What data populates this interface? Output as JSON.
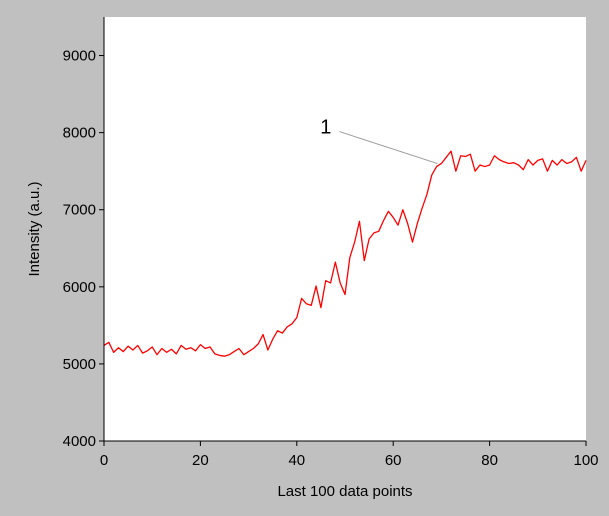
{
  "chart_data": {
    "type": "line",
    "title": "",
    "xlabel": "Last 100 data points",
    "ylabel": "Intensity (a.u.)",
    "xlim": [
      0,
      100
    ],
    "ylim": [
      4000,
      9500
    ],
    "x_ticks": [
      0,
      20,
      40,
      60,
      80,
      100
    ],
    "y_ticks": [
      4000,
      5000,
      6000,
      7000,
      8000,
      9000
    ],
    "x_tick_labels": [
      "0",
      "20",
      "40",
      "60",
      "80",
      "100"
    ],
    "y_tick_labels": [
      "4000",
      "5000",
      "6000",
      "7000",
      "8000",
      "9000"
    ],
    "grid": false,
    "legend": "none",
    "annotation": {
      "text": "1",
      "points_to": {
        "x": 70,
        "y": 7560
      }
    },
    "series": [
      {
        "color": "#ff0000",
        "x": [
          0,
          1,
          2,
          3,
          4,
          5,
          6,
          7,
          8,
          9,
          10,
          11,
          12,
          13,
          14,
          15,
          16,
          17,
          18,
          19,
          20,
          21,
          22,
          23,
          24,
          25,
          26,
          27,
          28,
          29,
          30,
          31,
          32,
          33,
          34,
          35,
          36,
          37,
          38,
          39,
          40,
          41,
          42,
          43,
          44,
          45,
          46,
          47,
          48,
          49,
          50,
          51,
          52,
          53,
          54,
          55,
          56,
          57,
          58,
          59,
          60,
          61,
          62,
          63,
          64,
          65,
          66,
          67,
          68,
          69,
          70,
          71,
          72,
          73,
          74,
          75,
          76,
          77,
          78,
          79,
          80,
          81,
          82,
          83,
          84,
          85,
          86,
          87,
          88,
          89,
          90,
          91,
          92,
          93,
          94,
          95,
          96,
          97,
          98,
          99,
          100
        ],
        "values": [
          5240,
          5280,
          5150,
          5210,
          5160,
          5230,
          5180,
          5240,
          5140,
          5170,
          5220,
          5120,
          5200,
          5150,
          5190,
          5130,
          5240,
          5190,
          5210,
          5170,
          5250,
          5200,
          5220,
          5130,
          5110,
          5100,
          5120,
          5160,
          5200,
          5120,
          5160,
          5200,
          5260,
          5380,
          5180,
          5320,
          5430,
          5400,
          5480,
          5520,
          5600,
          5850,
          5780,
          5760,
          6010,
          5730,
          6080,
          6050,
          6320,
          6050,
          5900,
          6380,
          6580,
          6850,
          6340,
          6620,
          6700,
          6720,
          6860,
          6980,
          6900,
          6800,
          7000,
          6820,
          6580,
          6820,
          7020,
          7200,
          7450,
          7560,
          7600,
          7680,
          7760,
          7500,
          7700,
          7690,
          7720,
          7500,
          7580,
          7560,
          7580,
          7700,
          7650,
          7620,
          7600,
          7610,
          7580,
          7520,
          7650,
          7580,
          7640,
          7660,
          7500,
          7640,
          7580,
          7650,
          7600,
          7620,
          7680,
          7500,
          7640
        ]
      }
    ]
  }
}
